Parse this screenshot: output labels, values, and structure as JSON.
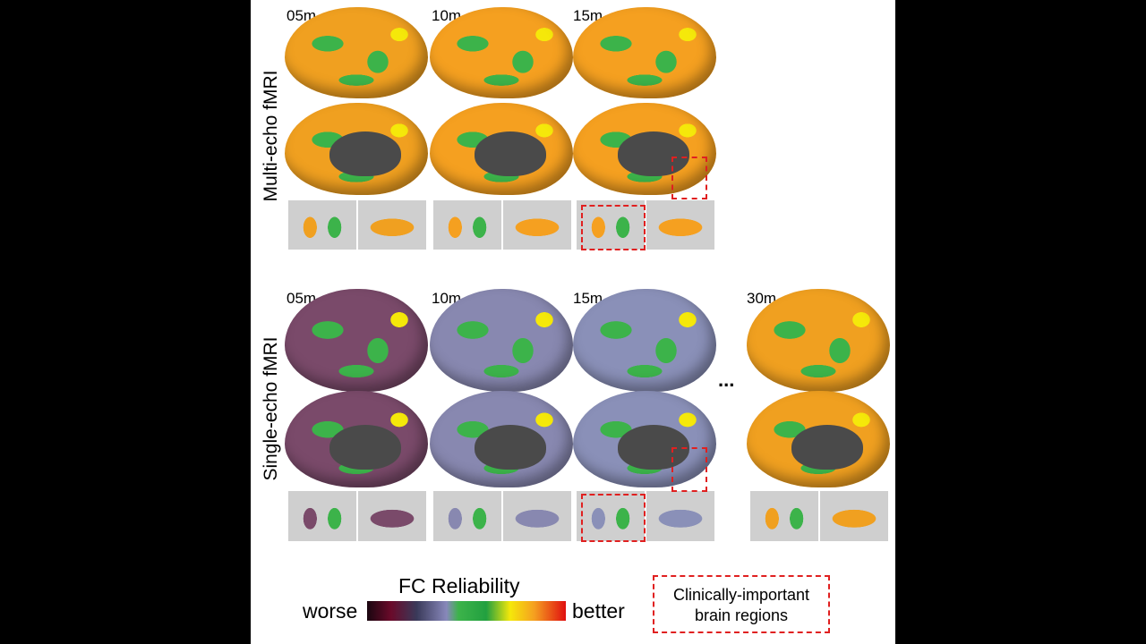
{
  "rows": [
    {
      "label": "Multi-echo fMRI",
      "times": [
        "05m",
        "10m",
        "15m"
      ],
      "colors": [
        [
          "#f0a020",
          "#3cb34a"
        ],
        [
          "#f5a020",
          "#3cb34a"
        ],
        [
          "#f5a020",
          "#3cb34a"
        ]
      ]
    },
    {
      "label": "Single-echo fMRI",
      "times": [
        "05m",
        "10m",
        "15m",
        "30m"
      ],
      "colors": [
        [
          "#7a4a6a",
          "#3cb34a"
        ],
        [
          "#8888b0",
          "#3cb34a"
        ],
        [
          "#8a90b8",
          "#3cb34a"
        ],
        [
          "#f0a020",
          "#3cb34a"
        ]
      ]
    }
  ],
  "ellipsis": "...",
  "legend": {
    "title": "FC Reliability",
    "low": "worse",
    "high": "better",
    "colormap": [
      "#1a0610",
      "#6a0a2a",
      "#3a3a5a",
      "#8888bb",
      "#22a040",
      "#f5e80a",
      "#f5a020",
      "#e01010"
    ],
    "box_label_line1": "Clinically-important",
    "box_label_line2": "brain regions",
    "box_color": "#e02020"
  }
}
